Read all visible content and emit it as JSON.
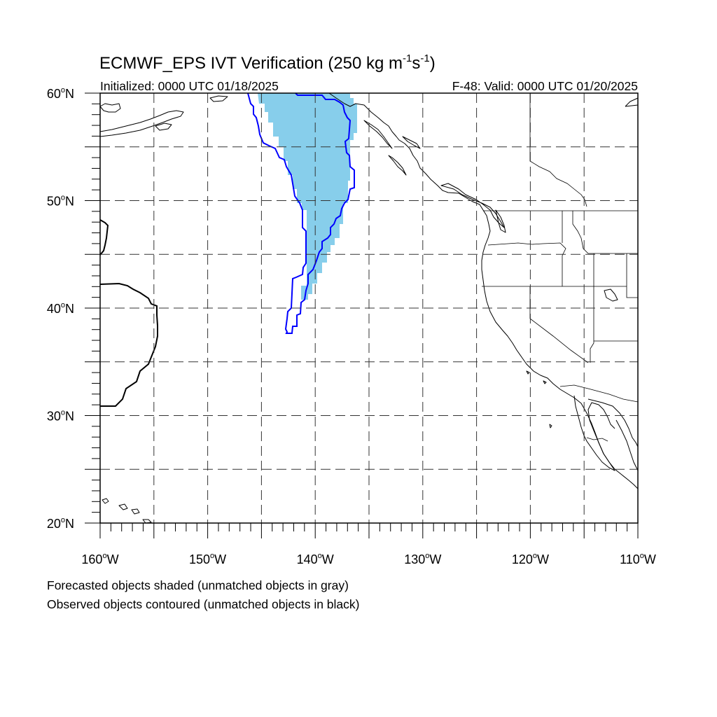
{
  "map": {
    "title_main": "ECMWF_EPS IVT Verification (250 kg m",
    "title_sup1": "-1",
    "title_mid": "s",
    "title_sup2": "-1",
    "title_end": ")",
    "subtitle_left": "Initialized: 0000 UTC 01/18/2025",
    "subtitle_right": "F-48: Valid: 0000 UTC 01/20/2025",
    "extent": {
      "lon_min": -160,
      "lon_max": -110,
      "lat_min": 20,
      "lat_max": 60
    },
    "lat_labels": [
      {
        "value": 60,
        "num": "60",
        "hemi": "N"
      },
      {
        "value": 50,
        "num": "50",
        "hemi": "N"
      },
      {
        "value": 40,
        "num": "40",
        "hemi": "N"
      },
      {
        "value": 30,
        "num": "30",
        "hemi": "N"
      },
      {
        "value": 20,
        "num": "20",
        "hemi": "N"
      }
    ],
    "lon_labels": [
      {
        "value": -160,
        "num": "160",
        "hemi": "W"
      },
      {
        "value": -150,
        "num": "150",
        "hemi": "W"
      },
      {
        "value": -140,
        "num": "140",
        "hemi": "W"
      },
      {
        "value": -130,
        "num": "130",
        "hemi": "W"
      },
      {
        "value": -120,
        "num": "120",
        "hemi": "W"
      },
      {
        "value": -110,
        "num": "110",
        "hemi": "W"
      }
    ],
    "grid_lons": [
      -155,
      -150,
      -145,
      -140,
      -135,
      -130,
      -125,
      -120,
      -115
    ],
    "grid_lats": [
      55,
      50,
      45,
      40,
      35,
      30,
      25
    ],
    "colors": {
      "forecast_fill": "#87ceeb",
      "observed_matched": "#0000ff",
      "observed_unmatched": "#000000"
    },
    "legend_line1": "Forecasted objects shaded (unmatched objects in gray)",
    "legend_line2": "Observed objects contoured (unmatched objects in black)"
  }
}
